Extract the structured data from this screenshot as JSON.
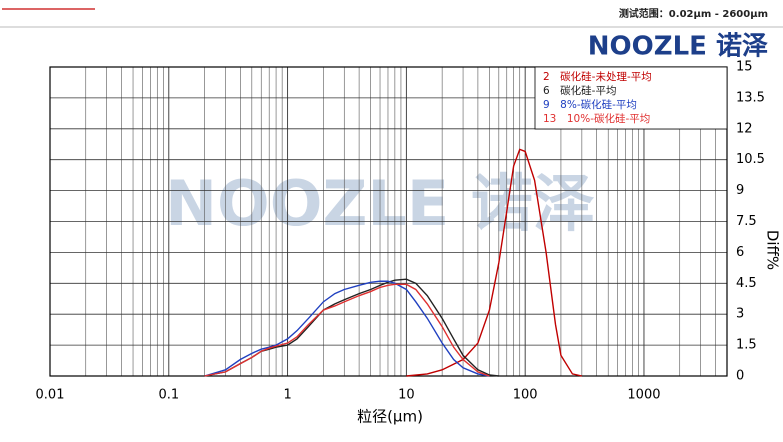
{
  "header": {
    "range_text": "测试范围：0.02μm - 2600μm",
    "logo": "NOOZLE 诺泽"
  },
  "chart_data": {
    "type": "line",
    "watermark": "NOOZLE 诺泽",
    "x_label": "粒径(μm)",
    "y_label": "Diff%",
    "xlog": true,
    "grid": true,
    "legend": "top-right",
    "xlim": [
      0.01,
      5000
    ],
    "xticks": [
      0.01,
      0.1,
      1,
      10,
      100,
      1000
    ],
    "ylim": [
      0,
      15
    ],
    "yticks": [
      0,
      1.5,
      3,
      4.5,
      6,
      7.5,
      9,
      10.5,
      12,
      13.5,
      15
    ],
    "series": [
      {
        "name": "2　碳化硅-未处理-平均",
        "color": "#c00000",
        "x": [
          10,
          15,
          20,
          30,
          40,
          50,
          60,
          70,
          80,
          90,
          100,
          120,
          150,
          180,
          200,
          250,
          300
        ],
        "values": [
          0,
          0.1,
          0.3,
          0.8,
          1.6,
          3.2,
          5.5,
          8,
          10.2,
          11,
          10.9,
          9.5,
          6,
          2.5,
          1,
          0.1,
          0
        ]
      },
      {
        "name": "6　碳化硅-平均",
        "color": "#222222",
        "x": [
          0.2,
          0.3,
          0.4,
          0.5,
          0.6,
          0.7,
          0.8,
          1,
          1.2,
          1.5,
          2,
          2.5,
          3,
          4,
          5,
          6,
          7,
          8,
          10,
          12,
          15,
          20,
          25,
          30,
          40,
          50,
          60
        ],
        "values": [
          0,
          0.2,
          0.6,
          0.9,
          1.2,
          1.3,
          1.4,
          1.5,
          1.8,
          2.4,
          3.2,
          3.5,
          3.7,
          4,
          4.2,
          4.4,
          4.55,
          4.65,
          4.7,
          4.5,
          3.9,
          2.8,
          1.8,
          1,
          0.3,
          0.05,
          0
        ]
      },
      {
        "name": "9　8%-碳化硅-平均",
        "color": "#2040c0",
        "x": [
          0.2,
          0.3,
          0.4,
          0.5,
          0.6,
          0.7,
          0.8,
          1,
          1.2,
          1.5,
          2,
          2.5,
          3,
          4,
          5,
          6,
          7,
          8,
          10,
          12,
          15,
          20,
          25,
          30,
          40,
          50
        ],
        "values": [
          0,
          0.3,
          0.8,
          1.1,
          1.3,
          1.4,
          1.5,
          1.8,
          2.2,
          2.8,
          3.6,
          4,
          4.2,
          4.4,
          4.55,
          4.6,
          4.6,
          4.5,
          4.2,
          3.6,
          2.8,
          1.6,
          0.8,
          0.4,
          0.1,
          0
        ]
      },
      {
        "name": "13　10%-碳化硅-平均",
        "color": "#e03030",
        "x": [
          0.2,
          0.3,
          0.4,
          0.5,
          0.6,
          0.7,
          0.8,
          1,
          1.2,
          1.5,
          2,
          2.5,
          3,
          4,
          5,
          6,
          7,
          8,
          10,
          12,
          15,
          20,
          25,
          30,
          40,
          50
        ],
        "values": [
          0,
          0.2,
          0.6,
          0.9,
          1.2,
          1.35,
          1.45,
          1.6,
          1.9,
          2.5,
          3.2,
          3.4,
          3.6,
          3.9,
          4.1,
          4.3,
          4.4,
          4.45,
          4.45,
          4.2,
          3.5,
          2.4,
          1.4,
          0.8,
          0.2,
          0
        ]
      }
    ]
  }
}
